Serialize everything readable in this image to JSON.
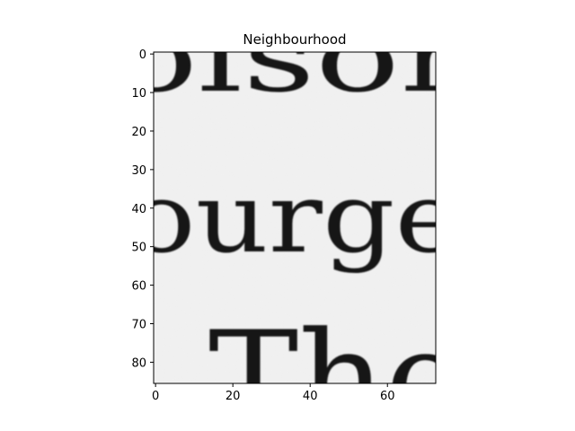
{
  "chart_data": {
    "type": "heatmap",
    "title": "Neighbourhood",
    "xlabel": "",
    "ylabel": "",
    "image_width": 73,
    "image_height": 86,
    "xlim": [
      -0.5,
      72.5
    ],
    "ylim": [
      85.5,
      -0.5
    ],
    "x_ticks": [
      0,
      20,
      40,
      60
    ],
    "y_ticks": [
      0,
      10,
      20,
      30,
      40,
      50,
      60,
      70,
      80
    ],
    "colormap": "gray",
    "grid": false,
    "content": "grayscale crop of a scanned printed page showing partial serif text across three lines",
    "visible_text_lines": [
      "olson",
      "ourge",
      "The"
    ]
  },
  "colors": {
    "background": "#ffffff",
    "paper": "#efefef",
    "ink": "#141414",
    "axis": "#000000"
  }
}
